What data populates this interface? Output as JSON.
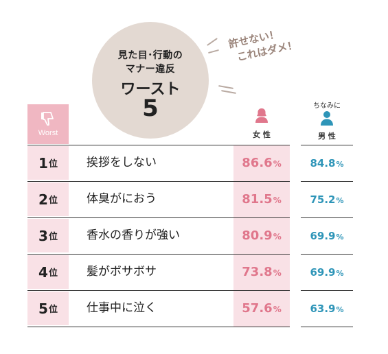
{
  "title": {
    "line1": "見た目･行動の",
    "line2": "マナー違反",
    "line3": "ワースト",
    "line4": "5"
  },
  "callout": {
    "line1": "許せない！",
    "line2": "これはダメ！"
  },
  "header": {
    "worst_label": "Worst",
    "worst_icon": "thumbs-down-icon",
    "female_icon": "female-person-icon",
    "female_label": "女 性",
    "male_note": "ちなみに",
    "male_icon": "male-person-icon",
    "male_label": "男 性"
  },
  "colors": {
    "female": "#e0778c",
    "male": "#2e95b8",
    "rank_bg": "#f9e1e6",
    "header_bg": "#f0b7c2",
    "circle_bg": "#e3d9d2"
  },
  "rank_suffix": "位",
  "percent_sign": "%",
  "chart_data": {
    "type": "table",
    "columns": [
      "Worst",
      "",
      "女 性",
      "男 性"
    ],
    "rows": [
      {
        "rank": "1",
        "item": "挨拶をしない",
        "female": 86.6,
        "male": 84.8,
        "female_text": "86.6",
        "male_text": "84.8"
      },
      {
        "rank": "2",
        "item": "体臭がにおう",
        "female": 81.5,
        "male": 75.2,
        "female_text": "81.5",
        "male_text": "75.2"
      },
      {
        "rank": "3",
        "item": "香水の香りが強い",
        "female": 80.9,
        "male": 69.9,
        "female_text": "80.9",
        "male_text": "69.9"
      },
      {
        "rank": "4",
        "item": "髪がボサボサ",
        "female": 73.8,
        "male": 69.9,
        "female_text": "73.8",
        "male_text": "69.9"
      },
      {
        "rank": "5",
        "item": "仕事中に泣く",
        "female": 57.6,
        "male": 63.9,
        "female_text": "57.6",
        "male_text": "63.9"
      }
    ]
  }
}
